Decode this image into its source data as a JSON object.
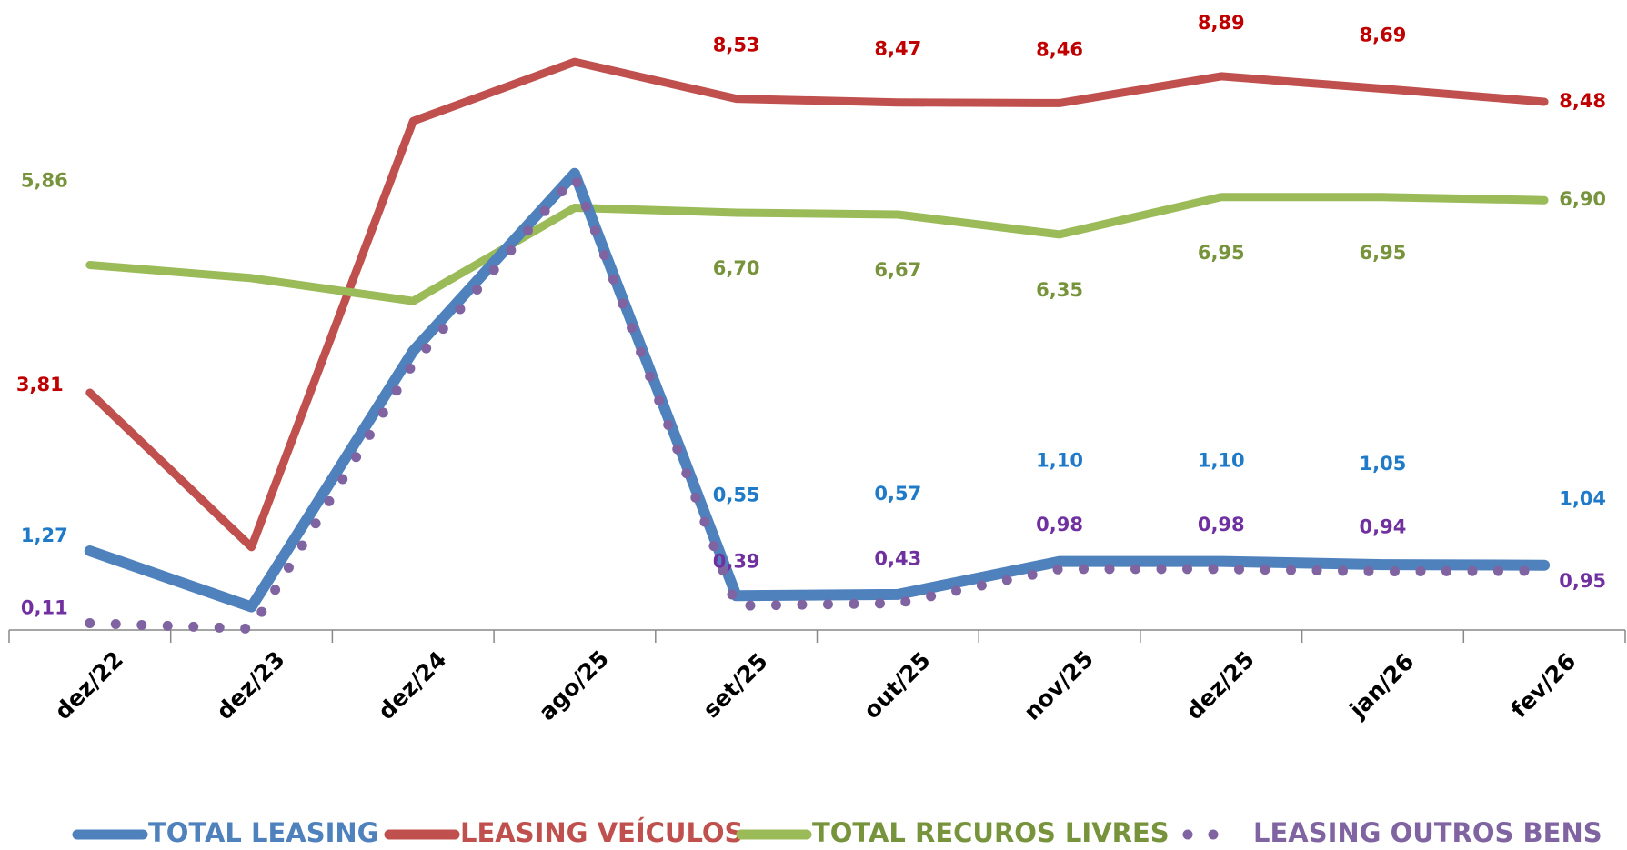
{
  "chart_data": {
    "type": "line",
    "categories": [
      "dez/22",
      "dez/23",
      "dez/24",
      "ago/25",
      "set/25",
      "out/25",
      "nov/25",
      "dez/25",
      "jan/26",
      "fev/26"
    ],
    "ylim": [
      0,
      10.1
    ],
    "series": [
      {
        "name": "LEASING VEÍCULOS",
        "color": "#c0504d",
        "style": "solid",
        "values": [
          3.81,
          1.33,
          8.17,
          9.12,
          8.53,
          8.47,
          8.46,
          8.89,
          8.69,
          8.48
        ],
        "value_labels": [
          "3,81",
          null,
          null,
          null,
          "8,53",
          "8,47",
          "8,46",
          "8,89",
          "8,69",
          "8,48"
        ]
      },
      {
        "name": "TOTAL RECUROS LIVRES",
        "color": "#9bbb59",
        "style": "solid",
        "values": [
          5.86,
          5.65,
          5.28,
          6.78,
          6.7,
          6.67,
          6.35,
          6.95,
          6.95,
          6.9
        ],
        "value_labels": [
          "5,86",
          null,
          null,
          null,
          "6,70",
          "6,67",
          "6,35",
          "6,95",
          "6,95",
          "6,90"
        ]
      },
      {
        "name": "TOTAL LEASING",
        "color": "#4f81bd",
        "style": "solid",
        "values": [
          1.27,
          0.37,
          4.48,
          7.33,
          0.55,
          0.57,
          1.1,
          1.1,
          1.05,
          1.04
        ],
        "value_labels": [
          "1,27",
          null,
          null,
          null,
          "0,55",
          "0,57",
          "1,10",
          "1,10",
          "1,05",
          "1,04"
        ]
      },
      {
        "name": "LEASING OUTROS BENS",
        "color": "#8064a2",
        "style": "dotted",
        "values": [
          0.11,
          0.02,
          4.28,
          7.28,
          0.39,
          0.43,
          0.98,
          0.98,
          0.94,
          0.95
        ],
        "value_labels": [
          "0,11",
          null,
          null,
          null,
          "0,39",
          "0,43",
          "0,98",
          "0,98",
          "0,94",
          "0,95"
        ]
      }
    ],
    "legend_order": [
      2,
      0,
      1,
      3
    ]
  }
}
